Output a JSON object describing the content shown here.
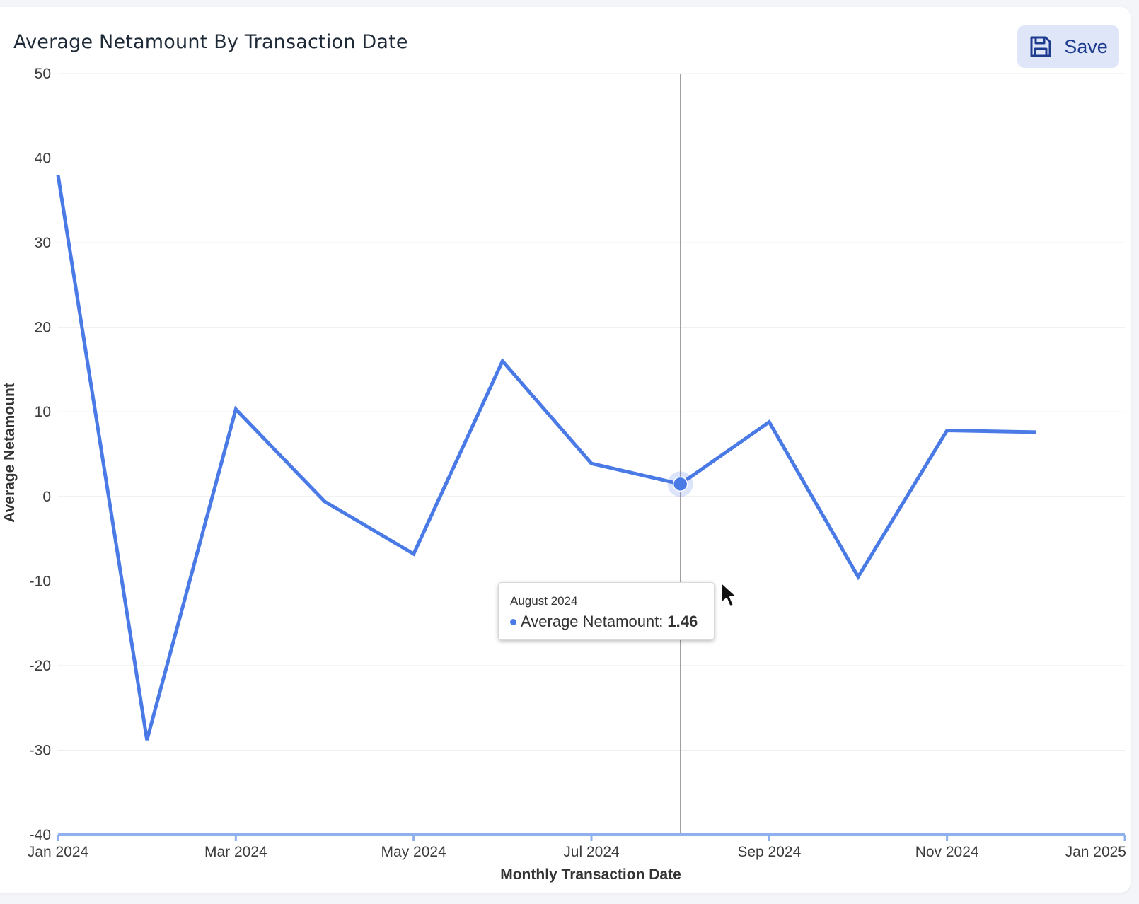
{
  "card": {
    "title": "Average Netamount By Transaction Date",
    "save_label": "Save"
  },
  "colors": {
    "line": "#4a7ae6",
    "axis": "#8fb0ee",
    "grid": "#eeeeee",
    "crosshair": "#9a9a9a",
    "save_bg": "#dfe6f7",
    "save_text": "#1d3b8f"
  },
  "icons": {
    "save": "floppy-disk-icon",
    "cursor": "mouse-pointer-icon"
  },
  "chart_data": {
    "type": "line",
    "title": "Average Netamount By Transaction Date",
    "xlabel": "Monthly Transaction Date",
    "ylabel": "Average Netamount",
    "ylim": [
      -40,
      50
    ],
    "yticks": [
      -40,
      -30,
      -20,
      -10,
      0,
      10,
      20,
      30,
      40,
      50
    ],
    "xlim": [
      "2024-01",
      "2025-01"
    ],
    "xticks": [
      {
        "date": "2024-01",
        "label": "Jan 2024"
      },
      {
        "date": "2024-03",
        "label": "Mar 2024"
      },
      {
        "date": "2024-05",
        "label": "May 2024"
      },
      {
        "date": "2024-07",
        "label": "Jul 2024"
      },
      {
        "date": "2024-09",
        "label": "Sep 2024"
      },
      {
        "date": "2024-11",
        "label": "Nov 2024"
      },
      {
        "date": "2025-01",
        "label": "Jan 2025"
      }
    ],
    "grid": true,
    "series": [
      {
        "name": "Average Netamount",
        "points": [
          {
            "x": "2024-01",
            "y": 38.0
          },
          {
            "x": "2024-02",
            "y": -28.8
          },
          {
            "x": "2024-03",
            "y": 10.3
          },
          {
            "x": "2024-04",
            "y": -0.6
          },
          {
            "x": "2024-05",
            "y": -6.8
          },
          {
            "x": "2024-06",
            "y": 16.0
          },
          {
            "x": "2024-07",
            "y": 3.9
          },
          {
            "x": "2024-08",
            "y": 1.46
          },
          {
            "x": "2024-09",
            "y": 8.8
          },
          {
            "x": "2024-10",
            "y": -9.5
          },
          {
            "x": "2024-11",
            "y": 7.8
          },
          {
            "x": "2024-12",
            "y": 7.6
          }
        ]
      }
    ],
    "tooltip": {
      "date": "August 2024",
      "series_label": "Average Netamount:",
      "value": "1.46",
      "x": "2024-08"
    }
  }
}
